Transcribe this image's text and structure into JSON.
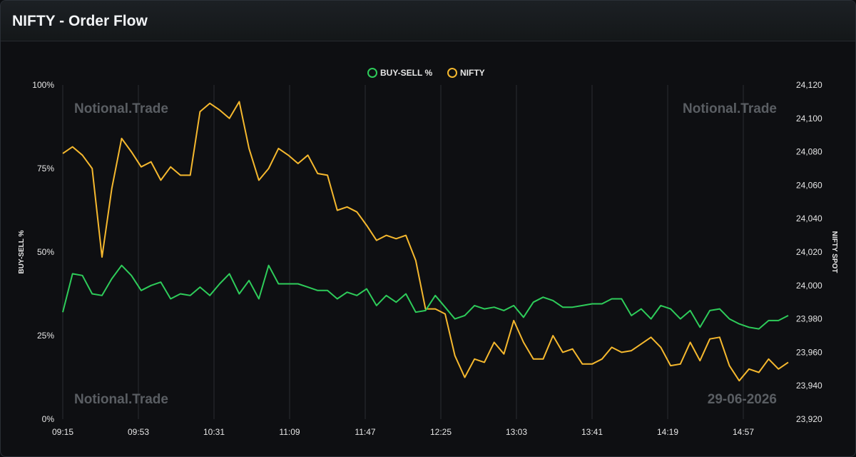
{
  "title": "NIFTY - Order Flow",
  "watermarks": {
    "top_left": "Notional.Trade",
    "top_right": "Notional.Trade",
    "bottom_left": "Notional.Trade",
    "date": "29-06-2026"
  },
  "colors": {
    "buy_sell": "#2ecc5a",
    "nifty": "#f5b82e",
    "background": "#0e0f12",
    "grid": "#2a2d31"
  },
  "chart_data": {
    "type": "line",
    "legend_placement": "top-center",
    "x_tick_labels": [
      "09:15",
      "09:53",
      "10:31",
      "11:09",
      "11:47",
      "12:25",
      "13:03",
      "13:41",
      "14:19",
      "14:57"
    ],
    "y_left": {
      "label": "BUY-SELL %",
      "ticks": [
        "0%",
        "25%",
        "50%",
        "75%",
        "100%"
      ],
      "range": [
        0,
        100
      ]
    },
    "y_right": {
      "label": "NIFTY SPOT",
      "ticks": [
        "23,920",
        "23,940",
        "23,960",
        "23,980",
        "24,000",
        "24,020",
        "24,040",
        "24,060",
        "24,080",
        "24,100",
        "24,120"
      ],
      "range": [
        23920,
        24120
      ]
    },
    "series": [
      {
        "name": "BUY-SELL %",
        "axis": "left",
        "values": [
          32,
          43.5,
          43,
          37.5,
          37,
          42,
          46,
          43,
          38.5,
          40,
          41,
          36,
          37.5,
          37,
          39.5,
          37,
          40.5,
          43.5,
          37.5,
          41.5,
          36,
          46,
          40.5,
          40.5,
          40.5,
          39.5,
          38.5,
          38.5,
          36,
          38,
          37,
          39,
          34,
          37,
          35,
          37.5,
          32,
          32.5,
          37,
          33.5,
          30,
          31,
          34,
          33,
          33.5,
          32.5,
          34,
          30.5,
          35,
          36.5,
          35.5,
          33.5,
          33.5,
          34,
          34.5,
          34.5,
          36,
          36,
          31,
          33,
          30,
          34,
          33,
          30,
          32.5,
          27.5,
          32.5,
          33,
          30,
          28.5,
          27.5,
          27,
          29.5,
          29.5,
          31
        ]
      },
      {
        "name": "NIFTY",
        "axis": "right",
        "values": [
          24079,
          24083,
          24078,
          24070,
          24017,
          24058,
          24088,
          24080,
          24071,
          24074,
          24063,
          24071,
          24066,
          24066,
          24104,
          24109,
          24105,
          24100,
          24110,
          24082,
          24063,
          24070,
          24082,
          24078,
          24073,
          24078,
          24067,
          24066,
          24045,
          24047,
          24044,
          24036,
          24027,
          24030,
          24028,
          24030,
          24015,
          23986,
          23986,
          23983,
          23958,
          23945,
          23956,
          23954,
          23966,
          23959,
          23979,
          23966,
          23956,
          23956,
          23970,
          23960,
          23962,
          23953,
          23953,
          23956,
          23963,
          23960,
          23961,
          23965,
          23969,
          23963,
          23952,
          23953,
          23966,
          23955,
          23968,
          23969,
          23952,
          23943,
          23950,
          23948,
          23956,
          23950,
          23954
        ]
      }
    ]
  }
}
